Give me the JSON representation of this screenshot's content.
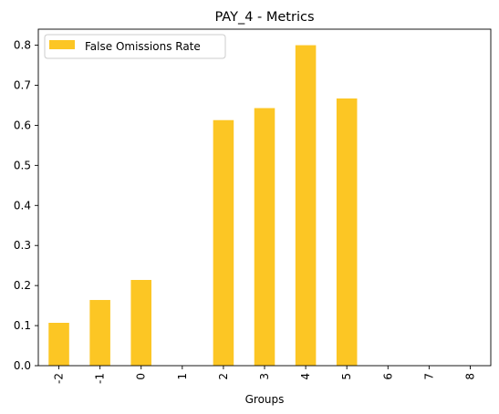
{
  "chart_data": {
    "type": "bar",
    "title": "PAY_4 - Metrics",
    "xlabel": "Groups",
    "ylabel": "",
    "categories": [
      "-2",
      "-1",
      "0",
      "1",
      "2",
      "3",
      "4",
      "5",
      "6",
      "7",
      "8"
    ],
    "series": [
      {
        "name": "False Omissions Rate",
        "color": "#fcc624",
        "values": [
          0.107,
          0.164,
          0.214,
          0.0,
          0.613,
          0.643,
          0.8,
          0.667,
          0.0,
          0.0,
          0.0
        ]
      }
    ],
    "ylim": [
      0,
      0.84
    ],
    "yticks": [
      "0.0",
      "0.1",
      "0.2",
      "0.3",
      "0.4",
      "0.5",
      "0.6",
      "0.7",
      "0.8"
    ],
    "legend_position": "top-left",
    "grid": false
  }
}
